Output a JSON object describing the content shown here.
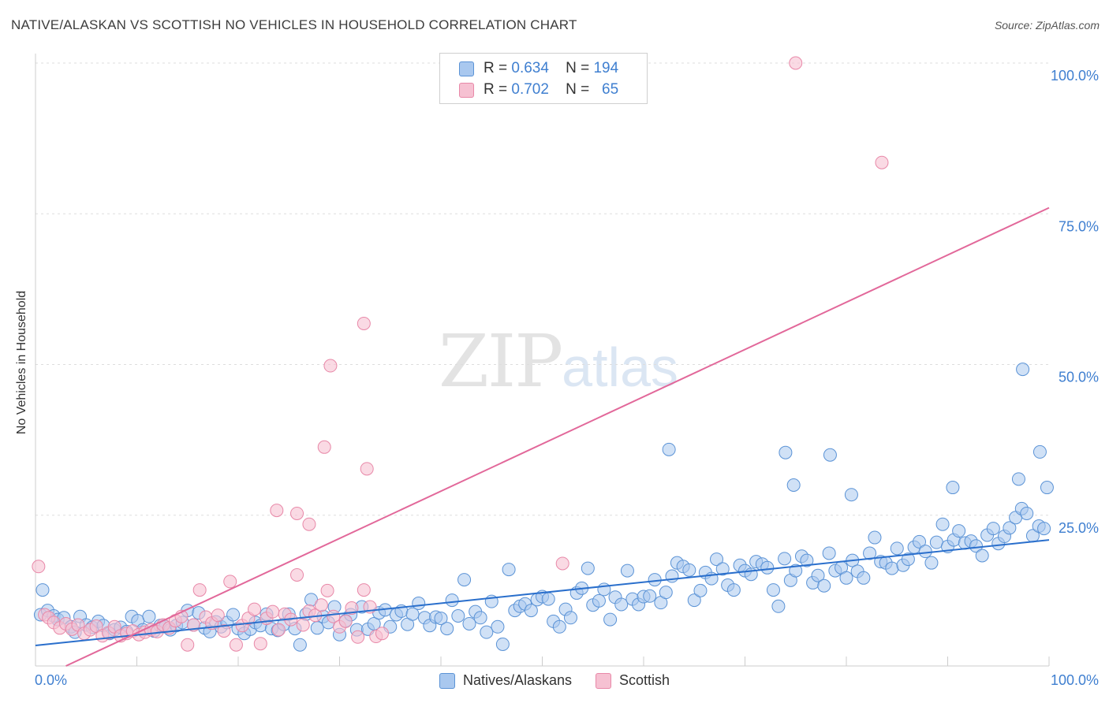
{
  "header": {
    "title": "NATIVE/ALASKAN VS SCOTTISH NO VEHICLES IN HOUSEHOLD CORRELATION CHART",
    "source": "Source: ZipAtlas.com"
  },
  "watermark": {
    "zip": "ZIP",
    "atlas": "atlas"
  },
  "legend": {
    "rows": [
      {
        "r_label": "R =",
        "r_value": "0.634",
        "n_label": "N =",
        "n_value": "194"
      },
      {
        "r_label": "R =",
        "r_value": "0.702",
        "n_label": "N =",
        "n_value": "65"
      }
    ]
  },
  "colors": {
    "blue_fill": "#a9c8ef",
    "blue_stroke": "#5b93d6",
    "blue_line": "#2a6fcc",
    "pink_fill": "#f6c1d2",
    "pink_stroke": "#e888a8",
    "pink_line": "#e2689a",
    "tick_label": "#3f7fd0",
    "grid": "#dddddd"
  },
  "chart_data": {
    "type": "scatter",
    "xlabel": "",
    "ylabel": "No Vehicles in Household",
    "xlim": [
      0,
      100
    ],
    "ylim": [
      0,
      100
    ],
    "x_tick_labels": [
      "0.0%",
      "100.0%"
    ],
    "y_ticks": [
      25,
      50,
      75,
      100
    ],
    "y_tick_labels": [
      "25.0%",
      "50.0%",
      "75.0%",
      "100.0%"
    ],
    "grid": true,
    "legend_position": "bottom-center",
    "series": [
      {
        "name": "Natives/Alaskans",
        "trend": {
          "x": [
            0,
            100
          ],
          "y": [
            3.4,
            20.9
          ]
        },
        "points": [
          [
            0.5,
            8.5
          ],
          [
            0.7,
            12.6
          ],
          [
            1.2,
            9.2
          ],
          [
            1.8,
            8.3
          ],
          [
            2.2,
            7.7
          ],
          [
            2.8,
            8.0
          ],
          [
            3.5,
            6.5
          ],
          [
            3.9,
            5.6
          ],
          [
            4.4,
            8.2
          ],
          [
            5.0,
            6.8
          ],
          [
            5.6,
            6.4
          ],
          [
            6.2,
            7.4
          ],
          [
            6.7,
            6.7
          ],
          [
            7.3,
            5.4
          ],
          [
            7.8,
            6.0
          ],
          [
            8.4,
            6.4
          ],
          [
            9.0,
            5.7
          ],
          [
            9.5,
            8.2
          ],
          [
            10.1,
            7.5
          ],
          [
            10.6,
            6.0
          ],
          [
            11.2,
            8.2
          ],
          [
            11.7,
            5.8
          ],
          [
            12.3,
            6.7
          ],
          [
            12.8,
            6.5
          ],
          [
            13.3,
            6.0
          ],
          [
            13.9,
            6.7
          ],
          [
            14.5,
            7.2
          ],
          [
            15.0,
            9.2
          ],
          [
            15.6,
            6.8
          ],
          [
            16.1,
            8.8
          ],
          [
            16.7,
            6.3
          ],
          [
            17.2,
            5.7
          ],
          [
            17.8,
            7.3
          ],
          [
            18.3,
            6.5
          ],
          [
            18.9,
            7.2
          ],
          [
            19.5,
            8.5
          ],
          [
            20.0,
            6.2
          ],
          [
            20.6,
            5.4
          ],
          [
            21.2,
            6.1
          ],
          [
            21.7,
            7.2
          ],
          [
            22.2,
            6.7
          ],
          [
            22.8,
            8.6
          ],
          [
            23.3,
            6.2
          ],
          [
            23.9,
            5.9
          ],
          [
            24.5,
            6.9
          ],
          [
            25.0,
            8.6
          ],
          [
            25.6,
            6.2
          ],
          [
            26.1,
            3.5
          ],
          [
            26.7,
            8.6
          ],
          [
            27.2,
            11.0
          ],
          [
            27.8,
            6.3
          ],
          [
            28.4,
            8.2
          ],
          [
            28.9,
            7.2
          ],
          [
            29.5,
            9.8
          ],
          [
            30.0,
            5.2
          ],
          [
            30.6,
            7.5
          ],
          [
            31.1,
            8.5
          ],
          [
            31.7,
            6.0
          ],
          [
            32.2,
            9.8
          ],
          [
            32.8,
            6.1
          ],
          [
            33.4,
            7.0
          ],
          [
            33.9,
            8.8
          ],
          [
            34.5,
            9.3
          ],
          [
            35.0,
            6.5
          ],
          [
            35.6,
            8.5
          ],
          [
            36.1,
            9.1
          ],
          [
            36.7,
            6.9
          ],
          [
            37.2,
            8.6
          ],
          [
            37.8,
            10.4
          ],
          [
            38.4,
            8.0
          ],
          [
            38.9,
            6.7
          ],
          [
            39.5,
            8.1
          ],
          [
            40.0,
            7.9
          ],
          [
            40.6,
            6.2
          ],
          [
            41.1,
            10.9
          ],
          [
            41.7,
            8.3
          ],
          [
            42.3,
            14.3
          ],
          [
            42.8,
            7.0
          ],
          [
            43.4,
            9.0
          ],
          [
            43.9,
            8.0
          ],
          [
            44.5,
            5.6
          ],
          [
            45.0,
            10.7
          ],
          [
            45.6,
            6.5
          ],
          [
            46.1,
            3.6
          ],
          [
            46.7,
            16.0
          ],
          [
            47.3,
            9.2
          ],
          [
            47.8,
            9.9
          ],
          [
            48.3,
            10.3
          ],
          [
            48.9,
            9.2
          ],
          [
            49.5,
            11.0
          ],
          [
            50.0,
            11.5
          ],
          [
            50.6,
            11.1
          ],
          [
            51.1,
            7.4
          ],
          [
            51.7,
            6.5
          ],
          [
            52.3,
            9.4
          ],
          [
            52.8,
            8.0
          ],
          [
            53.4,
            12.1
          ],
          [
            53.9,
            12.9
          ],
          [
            54.5,
            16.2
          ],
          [
            55.0,
            10.1
          ],
          [
            55.6,
            10.8
          ],
          [
            56.1,
            12.7
          ],
          [
            56.7,
            7.7
          ],
          [
            57.2,
            11.4
          ],
          [
            57.8,
            10.2
          ],
          [
            58.4,
            15.8
          ],
          [
            58.9,
            11.1
          ],
          [
            59.5,
            10.2
          ],
          [
            60.0,
            11.5
          ],
          [
            60.6,
            11.6
          ],
          [
            61.1,
            14.3
          ],
          [
            61.7,
            10.5
          ],
          [
            62.2,
            12.2
          ],
          [
            62.8,
            14.9
          ],
          [
            63.3,
            17.1
          ],
          [
            63.9,
            16.5
          ],
          [
            64.5,
            15.9
          ],
          [
            65.0,
            10.9
          ],
          [
            65.6,
            12.5
          ],
          [
            66.1,
            15.5
          ],
          [
            66.7,
            14.5
          ],
          [
            67.2,
            17.7
          ],
          [
            67.8,
            16.1
          ],
          [
            68.3,
            13.4
          ],
          [
            68.9,
            12.6
          ],
          [
            69.5,
            16.7
          ],
          [
            70.0,
            15.8
          ],
          [
            70.6,
            15.2
          ],
          [
            71.1,
            17.3
          ],
          [
            71.7,
            16.9
          ],
          [
            72.2,
            16.3
          ],
          [
            72.8,
            12.6
          ],
          [
            73.3,
            9.9
          ],
          [
            73.9,
            17.8
          ],
          [
            74.5,
            14.2
          ],
          [
            75.0,
            15.8
          ],
          [
            75.6,
            18.2
          ],
          [
            76.1,
            17.5
          ],
          [
            76.7,
            13.8
          ],
          [
            77.2,
            15.0
          ],
          [
            77.8,
            13.3
          ],
          [
            78.3,
            18.7
          ],
          [
            78.9,
            15.8
          ],
          [
            79.5,
            16.3
          ],
          [
            80.0,
            14.6
          ],
          [
            80.6,
            17.5
          ],
          [
            81.1,
            15.7
          ],
          [
            81.7,
            14.6
          ],
          [
            82.3,
            18.7
          ],
          [
            82.8,
            21.3
          ],
          [
            83.4,
            17.3
          ],
          [
            83.9,
            17.1
          ],
          [
            84.5,
            16.2
          ],
          [
            85.0,
            19.5
          ],
          [
            85.6,
            16.7
          ],
          [
            86.1,
            17.7
          ],
          [
            86.7,
            19.7
          ],
          [
            87.2,
            20.6
          ],
          [
            87.8,
            19.0
          ],
          [
            88.4,
            17.1
          ],
          [
            88.9,
            20.5
          ],
          [
            89.5,
            23.5
          ],
          [
            90.0,
            19.8
          ],
          [
            90.6,
            20.9
          ],
          [
            91.1,
            22.4
          ],
          [
            91.7,
            20.4
          ],
          [
            92.3,
            20.7
          ],
          [
            92.8,
            19.9
          ],
          [
            93.4,
            18.3
          ],
          [
            93.9,
            21.7
          ],
          [
            94.5,
            22.8
          ],
          [
            95.0,
            20.3
          ],
          [
            95.6,
            21.5
          ],
          [
            96.1,
            22.9
          ],
          [
            96.7,
            24.6
          ],
          [
            97.3,
            26.1
          ],
          [
            97.8,
            25.3
          ],
          [
            98.4,
            21.6
          ],
          [
            99.0,
            23.2
          ],
          [
            99.5,
            22.8
          ],
          [
            62.5,
            35.9
          ],
          [
            74.0,
            35.4
          ],
          [
            78.4,
            35.0
          ],
          [
            97.4,
            49.2
          ],
          [
            99.1,
            35.5
          ],
          [
            97.0,
            31.0
          ],
          [
            99.8,
            29.6
          ],
          [
            90.5,
            29.6
          ],
          [
            74.8,
            30.0
          ],
          [
            80.5,
            28.4
          ]
        ]
      },
      {
        "name": "Scottish",
        "trend": {
          "x": [
            3,
            100
          ],
          "y": [
            0,
            76.0
          ]
        },
        "points": [
          [
            0.3,
            16.5
          ],
          [
            0.9,
            8.5
          ],
          [
            1.3,
            8.0
          ],
          [
            1.8,
            7.2
          ],
          [
            2.4,
            6.3
          ],
          [
            3.0,
            7.0
          ],
          [
            3.6,
            6.1
          ],
          [
            4.2,
            6.8
          ],
          [
            4.8,
            5.4
          ],
          [
            5.4,
            6.0
          ],
          [
            6.0,
            6.6
          ],
          [
            6.6,
            5.0
          ],
          [
            7.2,
            5.5
          ],
          [
            7.8,
            6.5
          ],
          [
            8.4,
            5.0
          ],
          [
            9.0,
            5.4
          ],
          [
            9.6,
            5.8
          ],
          [
            10.2,
            5.2
          ],
          [
            10.8,
            5.6
          ],
          [
            11.4,
            6.0
          ],
          [
            12.0,
            5.7
          ],
          [
            12.6,
            6.8
          ],
          [
            13.2,
            6.3
          ],
          [
            13.8,
            7.5
          ],
          [
            14.4,
            8.2
          ],
          [
            15.0,
            3.5
          ],
          [
            15.6,
            6.8
          ],
          [
            16.2,
            12.6
          ],
          [
            16.8,
            8.1
          ],
          [
            17.4,
            7.1
          ],
          [
            18.0,
            8.4
          ],
          [
            18.6,
            5.8
          ],
          [
            19.2,
            14.0
          ],
          [
            19.8,
            3.5
          ],
          [
            20.4,
            6.7
          ],
          [
            21.0,
            7.9
          ],
          [
            21.6,
            9.4
          ],
          [
            22.2,
            3.7
          ],
          [
            22.8,
            7.9
          ],
          [
            23.4,
            9.0
          ],
          [
            24.0,
            6.0
          ],
          [
            24.6,
            8.6
          ],
          [
            25.2,
            7.7
          ],
          [
            25.8,
            15.1
          ],
          [
            26.4,
            6.8
          ],
          [
            27.0,
            9.1
          ],
          [
            27.6,
            8.4
          ],
          [
            28.2,
            10.1
          ],
          [
            28.8,
            12.5
          ],
          [
            29.4,
            8.2
          ],
          [
            30.0,
            6.5
          ],
          [
            30.6,
            7.4
          ],
          [
            31.2,
            9.6
          ],
          [
            31.8,
            4.8
          ],
          [
            32.4,
            12.6
          ],
          [
            33.0,
            9.8
          ],
          [
            33.6,
            4.9
          ],
          [
            34.2,
            5.4
          ],
          [
            23.8,
            25.8
          ],
          [
            25.8,
            25.3
          ],
          [
            27.0,
            23.5
          ],
          [
            28.5,
            36.3
          ],
          [
            29.1,
            49.8
          ],
          [
            32.4,
            56.8
          ],
          [
            32.7,
            32.7
          ],
          [
            52.0,
            17.0
          ],
          [
            75.0,
            100.0
          ],
          [
            83.5,
            83.5
          ]
        ]
      }
    ]
  }
}
